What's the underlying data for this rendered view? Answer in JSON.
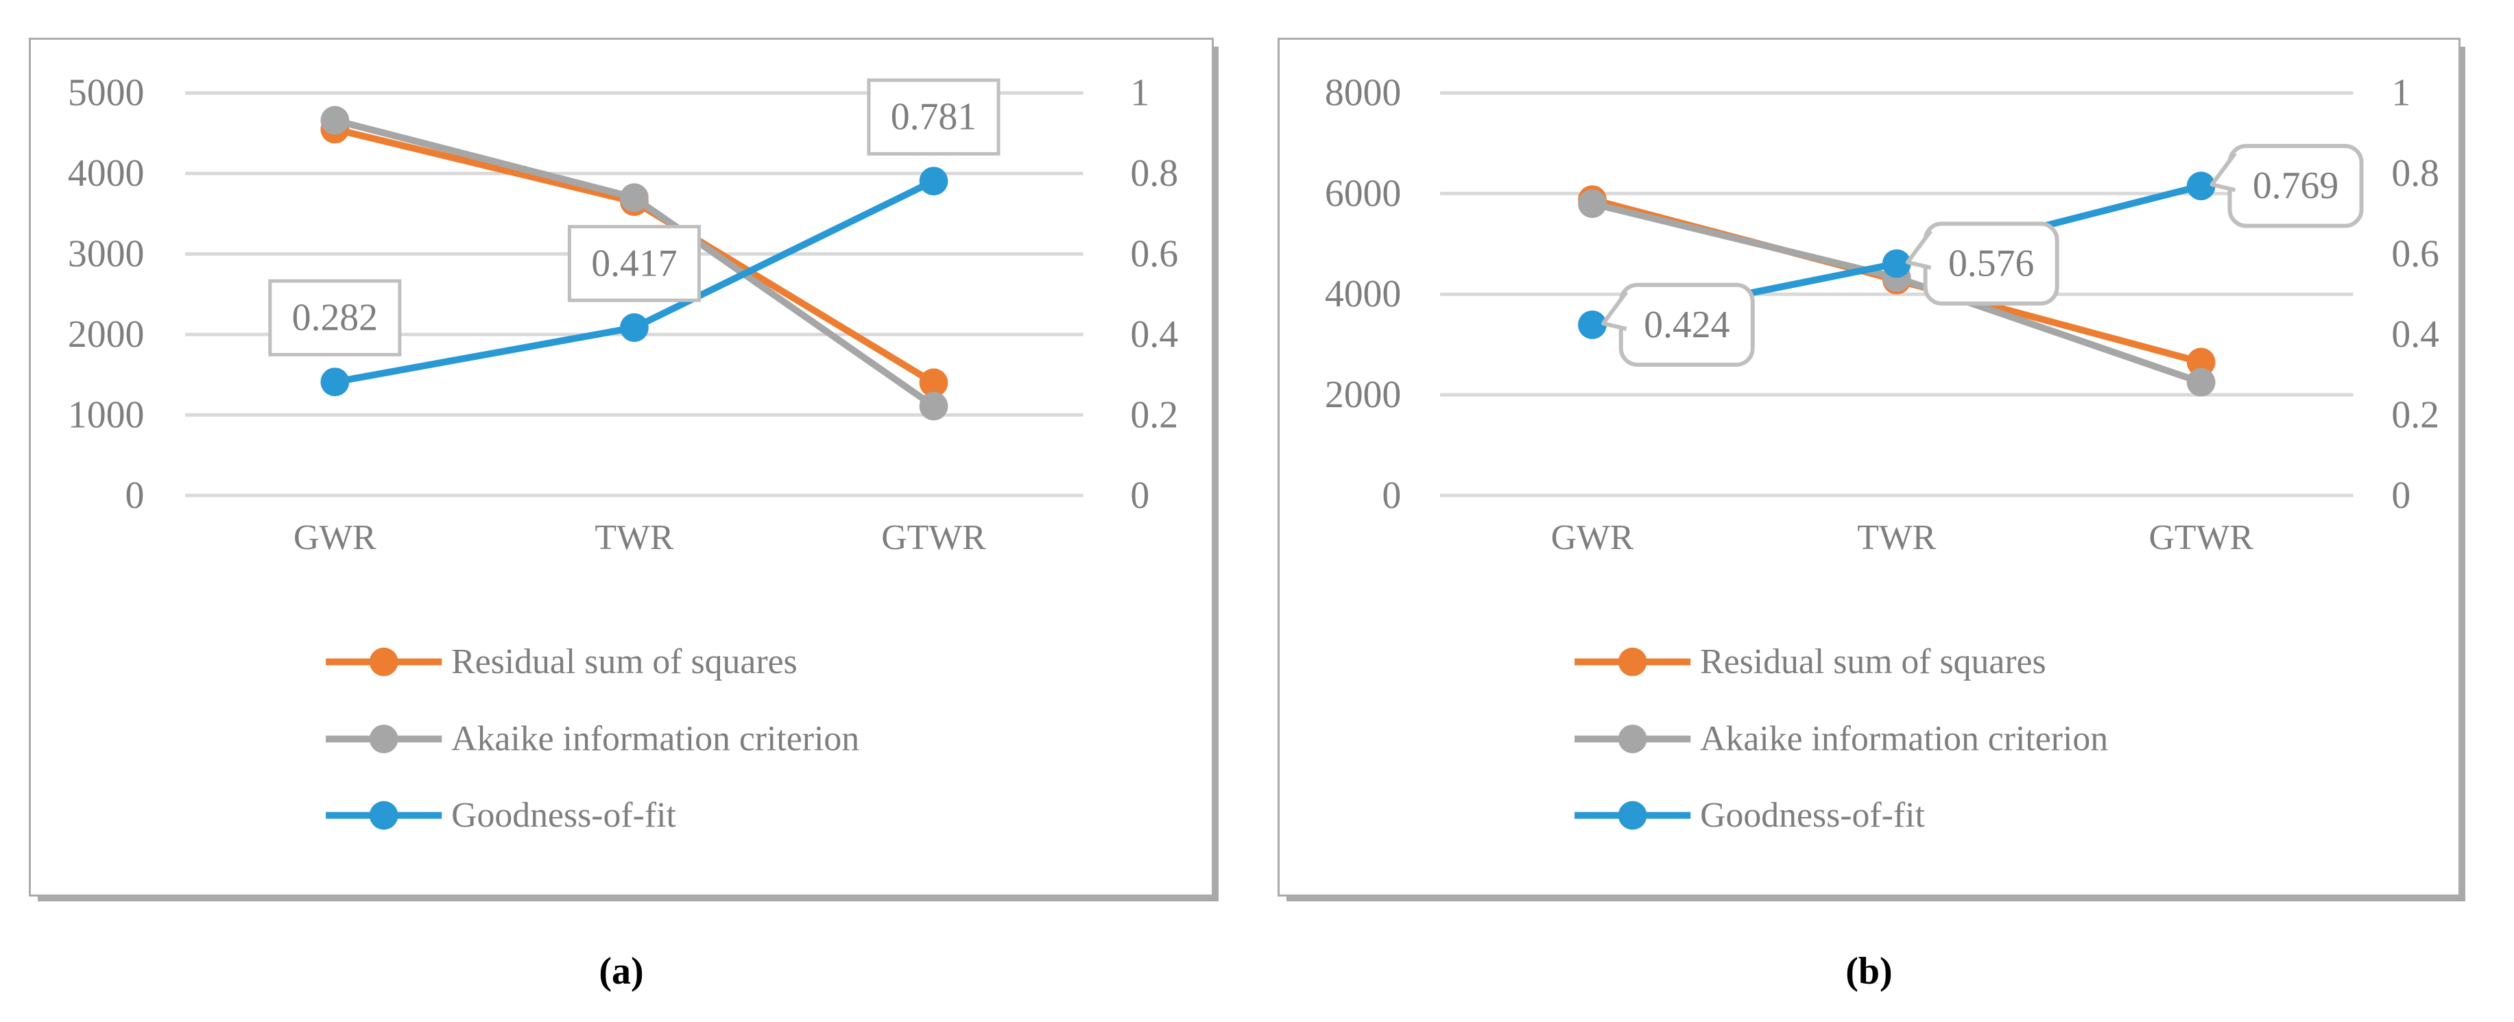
{
  "ui": {
    "captions": [
      "(a)",
      "(b)"
    ]
  },
  "colors": {
    "residual_sum_of_squares": "#ED7D31",
    "akaike_information_criterion": "#A6A6A6",
    "goodness_of_fit": "#2899D5",
    "gridline": "#D9D9D9",
    "axis_text": "#7E7E7E",
    "label_border": "#BFBFBF",
    "panel_border": "#ABABAB"
  },
  "chart_data": [
    {
      "type": "line",
      "title": "",
      "xlabel": "",
      "ylabel": "",
      "categories": [
        "GWR",
        "TWR",
        "GTWR"
      ],
      "left_axis": {
        "min": 0,
        "max": 5000,
        "step": 1000,
        "tick_labels": [
          "5000",
          "4000",
          "3000",
          "2000",
          "1000",
          "0"
        ]
      },
      "right_axis": {
        "min": 0,
        "max": 1,
        "step": 0.2,
        "tick_labels": [
          "1",
          "0.8",
          "0.6",
          "0.4",
          "0.2",
          "0"
        ]
      },
      "grid": true,
      "legend_position": "bottom",
      "series": [
        {
          "name": "Residual sum of squares",
          "axis": "left",
          "color": "#ED7D31",
          "values": [
            4550,
            3650,
            1400
          ]
        },
        {
          "name": "Akaike information criterion",
          "axis": "left",
          "color": "#A6A6A6",
          "values": [
            4660,
            3700,
            1110
          ]
        },
        {
          "name": "Goodness-of-fit",
          "axis": "right",
          "color": "#2899D5",
          "values": [
            0.282,
            0.417,
            0.781
          ]
        }
      ],
      "data_labels": {
        "series": "Goodness-of-fit",
        "style": "rect",
        "values": [
          "0.282",
          "0.417",
          "0.781"
        ]
      }
    },
    {
      "type": "line",
      "title": "",
      "xlabel": "",
      "ylabel": "",
      "categories": [
        "GWR",
        "TWR",
        "GTWR"
      ],
      "left_axis": {
        "min": 0,
        "max": 8000,
        "step": 2000,
        "tick_labels": [
          "8000",
          "6000",
          "4000",
          "2000",
          "0"
        ]
      },
      "right_axis": {
        "min": 0,
        "max": 1,
        "step": 0.2,
        "tick_labels": [
          "1",
          "0.8",
          "0.6",
          "0.4",
          "0.2",
          "0"
        ]
      },
      "grid": true,
      "legend_position": "bottom",
      "series": [
        {
          "name": "Residual sum of squares",
          "axis": "left",
          "color": "#ED7D31",
          "values": [
            5880,
            4280,
            2650
          ]
        },
        {
          "name": "Akaike information criterion",
          "axis": "left",
          "color": "#A6A6A6",
          "values": [
            5800,
            4330,
            2250
          ]
        },
        {
          "name": "Goodness-of-fit",
          "axis": "right",
          "color": "#2899D5",
          "values": [
            0.424,
            0.576,
            0.769
          ]
        }
      ],
      "data_labels": {
        "series": "Goodness-of-fit",
        "style": "callout",
        "values": [
          "0.424",
          "0.576",
          "0.769"
        ]
      }
    }
  ]
}
